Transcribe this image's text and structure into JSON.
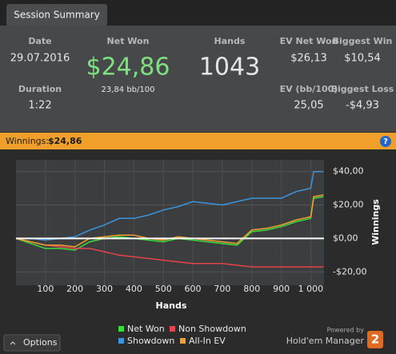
{
  "tab": "Session Summary",
  "stats": [
    {
      "label": "Date",
      "value": "29.07.2016"
    },
    {
      "label": "Net Won",
      "value": "$24,86",
      "sub": "23,84 bb/100"
    },
    {
      "label": "Hands",
      "value": "1043"
    },
    {
      "label": "EV Net Won",
      "value": "$26,13"
    },
    {
      "label": "Biggest Win",
      "value": "$10,54"
    },
    {
      "label": "Duration",
      "value": "1:22"
    },
    {
      "label": "EV (bb/100)",
      "value": "25,05"
    },
    {
      "label": "Biggest Loss",
      "value": "-$4,93"
    }
  ],
  "winnings_bar": {
    "label": "Winnings:",
    "value": "$24,86",
    "help": "?"
  },
  "options": "Options",
  "powered_by": "Powered by",
  "brand": "Hold'em Manager",
  "brand_badge": "2",
  "chart_data": {
    "type": "line",
    "x_label": "Hands",
    "y_label": "Winnings",
    "x": [
      0,
      50,
      100,
      150,
      200,
      250,
      300,
      350,
      400,
      450,
      500,
      550,
      600,
      650,
      700,
      750,
      800,
      850,
      900,
      950,
      1000,
      1010,
      1043
    ],
    "series": [
      {
        "name": "Net Won",
        "color": "#3ddc3d",
        "values": [
          0,
          -3,
          -6,
          -6,
          -7,
          -2,
          0,
          1,
          0,
          -1,
          -2,
          0,
          -1,
          -2,
          -3,
          -4,
          4,
          5,
          7,
          10,
          12,
          24,
          25
        ]
      },
      {
        "name": "Non Showdown",
        "color": "#e8434a",
        "values": [
          0,
          -2,
          -4,
          -5,
          -6,
          -6,
          -8,
          -10,
          -11,
          -12,
          -13,
          -14,
          -15,
          -15,
          -15,
          -16,
          -17,
          -17,
          -17,
          -17,
          -17,
          -17,
          -17
        ]
      },
      {
        "name": "Showdown",
        "color": "#3c95dc",
        "values": [
          0,
          0,
          -1,
          0,
          1,
          5,
          8,
          12,
          12,
          14,
          17,
          19,
          22,
          21,
          20,
          22,
          24,
          24,
          24,
          28,
          30,
          40,
          40
        ]
      },
      {
        "name": "All-In EV",
        "color": "#f0a030",
        "values": [
          0,
          -2,
          -4,
          -4,
          -5,
          0,
          1,
          2,
          2,
          0,
          -1,
          1,
          0,
          -1,
          -2,
          -3,
          5,
          6,
          8,
          11,
          13,
          25,
          26
        ]
      }
    ],
    "xlim": [
      0,
      1045
    ],
    "ylim": [
      -28,
      47
    ],
    "xticks": [
      100,
      200,
      300,
      400,
      500,
      600,
      700,
      800,
      900,
      {
        "value": 1000,
        "label": "1 000"
      }
    ],
    "yticks": [
      {
        "value": -20,
        "label": "-$20,00"
      },
      {
        "value": 0,
        "label": "$0,00"
      },
      {
        "value": 20,
        "label": "$20,00"
      },
      {
        "value": 40,
        "label": "$40,00"
      }
    ],
    "grid": true
  }
}
